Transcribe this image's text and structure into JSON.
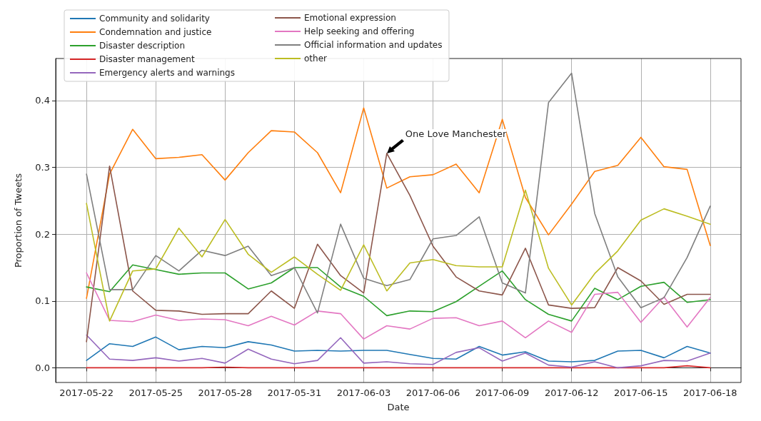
{
  "chart_data": {
    "type": "line",
    "xlabel": "Date",
    "ylabel": "Proportion of Tweets",
    "x": [
      "2017-05-22",
      "2017-05-23",
      "2017-05-24",
      "2017-05-25",
      "2017-05-26",
      "2017-05-27",
      "2017-05-28",
      "2017-05-29",
      "2017-05-30",
      "2017-05-31",
      "2017-06-01",
      "2017-06-02",
      "2017-06-03",
      "2017-06-04",
      "2017-06-05",
      "2017-06-06",
      "2017-06-07",
      "2017-06-08",
      "2017-06-09",
      "2017-06-10",
      "2017-06-11",
      "2017-06-12",
      "2017-06-13",
      "2017-06-14",
      "2017-06-15",
      "2017-06-16",
      "2017-06-17",
      "2017-06-18"
    ],
    "series": [
      {
        "name": "Community and solidarity",
        "color": "#1f77b4",
        "values": [
          0.011,
          0.036,
          0.032,
          0.046,
          0.027,
          0.032,
          0.03,
          0.039,
          0.034,
          0.025,
          0.026,
          0.025,
          0.026,
          0.026,
          0.02,
          0.014,
          0.013,
          0.032,
          0.019,
          0.024,
          0.01,
          0.009,
          0.011,
          0.025,
          0.026,
          0.015,
          0.032,
          0.022
        ]
      },
      {
        "name": "Condemnation and justice",
        "color": "#ff7f0e",
        "values": [
          0.104,
          0.29,
          0.357,
          0.313,
          0.315,
          0.319,
          0.281,
          0.322,
          0.355,
          0.353,
          0.322,
          0.262,
          0.389,
          0.269,
          0.286,
          0.289,
          0.305,
          0.262,
          0.372,
          0.255,
          0.199,
          0.245,
          0.294,
          0.303,
          0.345,
          0.301,
          0.297,
          0.183
        ]
      },
      {
        "name": "Disaster description",
        "color": "#2ca02c",
        "values": [
          0.121,
          0.114,
          0.154,
          0.147,
          0.14,
          0.142,
          0.142,
          0.118,
          0.127,
          0.15,
          0.15,
          0.121,
          0.107,
          0.078,
          0.085,
          0.084,
          0.099,
          0.122,
          0.145,
          0.102,
          0.08,
          0.07,
          0.119,
          0.102,
          0.122,
          0.128,
          0.098,
          0.102
        ]
      },
      {
        "name": "Disaster management",
        "color": "#d62728",
        "values": [
          0,
          0,
          0,
          0,
          0,
          0,
          0.001,
          0,
          0,
          0,
          0,
          0,
          0,
          0,
          0,
          0,
          0,
          0,
          0,
          0,
          0,
          0,
          0,
          0,
          0,
          0,
          0.003,
          0
        ]
      },
      {
        "name": "Emergency alerts and warnings",
        "color": "#9467bd",
        "values": [
          0.049,
          0.013,
          0.011,
          0.015,
          0.01,
          0.014,
          0.007,
          0.028,
          0.013,
          0.006,
          0.011,
          0.045,
          0.007,
          0.009,
          0.006,
          0.005,
          0.023,
          0.03,
          0.01,
          0.022,
          0.004,
          0.001,
          0.009,
          0.0,
          0.003,
          0.011,
          0.01,
          0.022
        ]
      },
      {
        "name": "Emotional expression",
        "color": "#8c564b",
        "values": [
          0.039,
          0.302,
          0.115,
          0.086,
          0.085,
          0.08,
          0.081,
          0.081,
          0.115,
          0.089,
          0.185,
          0.138,
          0.112,
          0.321,
          0.258,
          0.182,
          0.136,
          0.115,
          0.109,
          0.179,
          0.094,
          0.089,
          0.09,
          0.15,
          0.13,
          0.095,
          0.11,
          0.11
        ]
      },
      {
        "name": "Help seeking and offering",
        "color": "#e377c2",
        "values": [
          0.142,
          0.071,
          0.069,
          0.079,
          0.071,
          0.073,
          0.072,
          0.063,
          0.077,
          0.064,
          0.085,
          0.081,
          0.043,
          0.063,
          0.058,
          0.074,
          0.075,
          0.063,
          0.07,
          0.045,
          0.07,
          0.053,
          0.11,
          0.113,
          0.068,
          0.106,
          0.061,
          0.105
        ]
      },
      {
        "name": "Official information and updates",
        "color": "#7f7f7f",
        "values": [
          0.29,
          0.117,
          0.117,
          0.168,
          0.145,
          0.176,
          0.168,
          0.182,
          0.138,
          0.15,
          0.082,
          0.215,
          0.134,
          0.123,
          0.132,
          0.193,
          0.198,
          0.226,
          0.127,
          0.112,
          0.397,
          0.441,
          0.231,
          0.136,
          0.09,
          0.105,
          0.165,
          0.242
        ]
      },
      {
        "name": "other",
        "color": "#bcbd22",
        "values": [
          0.246,
          0.07,
          0.145,
          0.148,
          0.209,
          0.166,
          0.222,
          0.17,
          0.143,
          0.166,
          0.14,
          0.116,
          0.184,
          0.115,
          0.157,
          0.162,
          0.153,
          0.151,
          0.151,
          0.266,
          0.149,
          0.094,
          0.141,
          0.175,
          0.221,
          0.238,
          0.227,
          0.215
        ]
      }
    ],
    "xlim": [
      "2017-05-20T16:00",
      "2017-06-19T08:00"
    ],
    "xticks": [
      "2017-05-22",
      "2017-05-25",
      "2017-05-28",
      "2017-05-31",
      "2017-06-03",
      "2017-06-06",
      "2017-06-09",
      "2017-06-12",
      "2017-06-15",
      "2017-06-18"
    ],
    "ylim": [
      -0.022,
      0.463
    ],
    "yticks": [
      {
        "value": 0,
        "label": "0.0"
      },
      {
        "value": 0.1,
        "label": "0.1"
      },
      {
        "value": 0.2,
        "label": "0.2"
      },
      {
        "value": 0.3,
        "label": "0.3"
      },
      {
        "value": 0.4,
        "label": "0.4"
      }
    ],
    "annotations": [
      {
        "text": "One Love Manchester",
        "x": "2017-06-04",
        "y": 0.321
      }
    ],
    "grid": true,
    "legend": "top left",
    "marker": "none",
    "line_style": "solid"
  }
}
